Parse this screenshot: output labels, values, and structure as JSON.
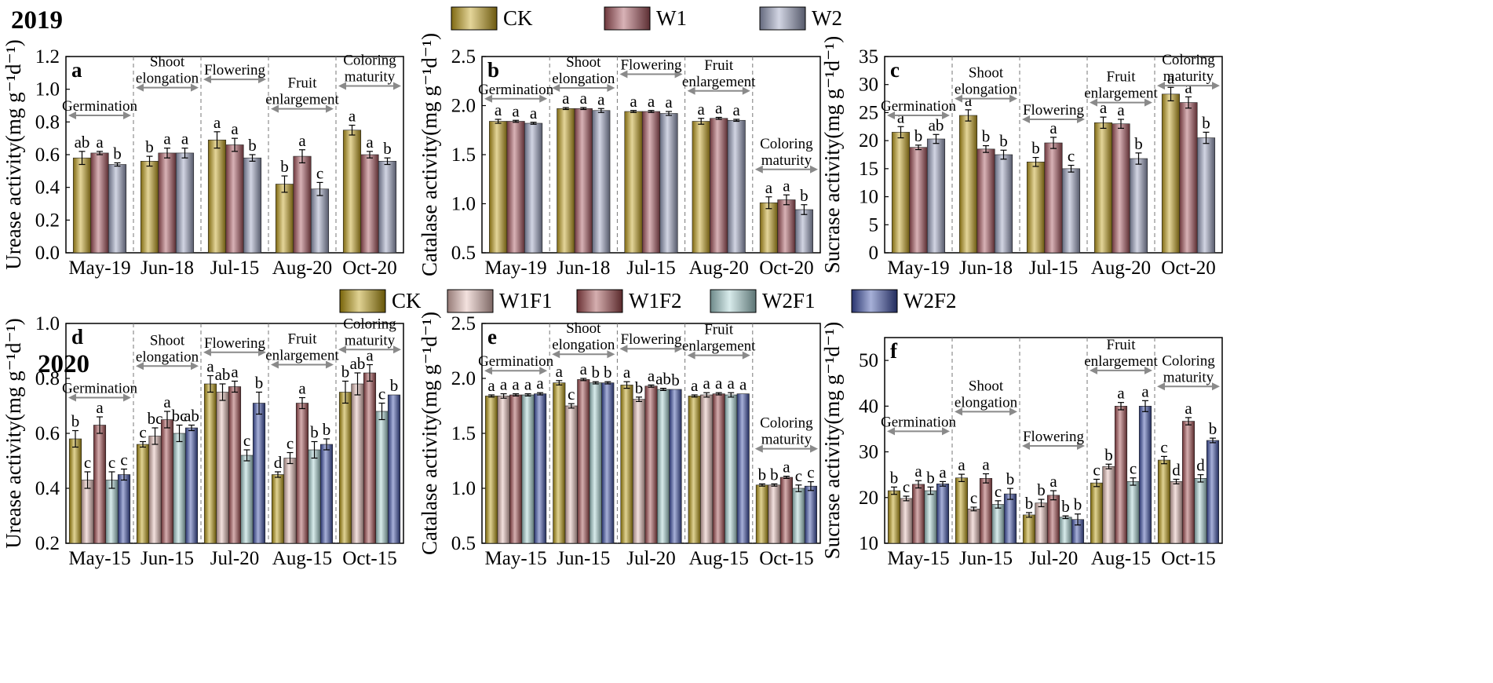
{
  "colors": {
    "CK": "#c4a21c",
    "W1": "#a8545c",
    "W2": "#9aa2c0",
    "W1F1": "#e4bcb6",
    "W1F2": "#a14a4e",
    "W2F1": "#a8d2d2",
    "W2F2": "#3c4fa8",
    "CK2": "#b99a0e"
  },
  "years": {
    "y2019": "2019",
    "y2020": "2020"
  },
  "legend2019": [
    {
      "name": "CK",
      "colorKey": "CK"
    },
    {
      "name": "W1",
      "colorKey": "W1"
    },
    {
      "name": "W2",
      "colorKey": "W2"
    }
  ],
  "legend2020": [
    {
      "name": "CK",
      "colorKey": "CK2"
    },
    {
      "name": "W1F1",
      "colorKey": "W1F1"
    },
    {
      "name": "W1F2",
      "colorKey": "W1F2"
    },
    {
      "name": "W2F1",
      "colorKey": "W2F1"
    },
    {
      "name": "W2F2",
      "colorKey": "W2F2"
    }
  ],
  "chart_data": [
    {
      "panel": "a",
      "type": "bar",
      "year": "2019",
      "ylabel": "Urease activity(mg g⁻¹d⁻¹)",
      "ylim": [
        0,
        1.2
      ],
      "yticks": [
        "0.0",
        "0.2",
        "0.4",
        "0.6",
        "0.8",
        "1.0",
        "1.2"
      ],
      "categories": [
        "May-19",
        "Jun-18",
        "Jul-15",
        "Aug-20",
        "Oct-20"
      ],
      "series": [
        {
          "name": "CK",
          "values": [
            0.58,
            0.56,
            0.69,
            0.42,
            0.75
          ],
          "errors": [
            0.04,
            0.03,
            0.05,
            0.05,
            0.03
          ],
          "letters": [
            "ab",
            "b",
            "a",
            "b",
            "a"
          ]
        },
        {
          "name": "W1",
          "values": [
            0.61,
            0.61,
            0.66,
            0.59,
            0.6
          ],
          "errors": [
            0.01,
            0.03,
            0.04,
            0.04,
            0.02
          ],
          "letters": [
            "a",
            "a",
            "a",
            "a",
            "a"
          ]
        },
        {
          "name": "W2",
          "values": [
            0.54,
            0.61,
            0.58,
            0.39,
            0.56
          ],
          "errors": [
            0.01,
            0.03,
            0.02,
            0.04,
            0.02
          ],
          "letters": [
            "b",
            "a",
            "b",
            "c",
            "b"
          ]
        }
      ],
      "stages": [
        {
          "lines": [
            "Germination"
          ],
          "level": 0.84
        },
        {
          "lines": [
            "Shoot",
            "elongation"
          ],
          "level": 1.01
        },
        {
          "lines": [
            "Flowering"
          ],
          "level": 1.06
        },
        {
          "lines": [
            "Fruit",
            "enlargement"
          ],
          "level": 0.88
        },
        {
          "lines": [
            "Coloring",
            "maturity"
          ],
          "level": 1.02
        }
      ]
    },
    {
      "panel": "b",
      "type": "bar",
      "year": "2019",
      "ylabel": "Catalase activity(mg g⁻¹d⁻¹)",
      "ylim": [
        0.5,
        2.5
      ],
      "yticks": [
        "0.5",
        "1.0",
        "1.5",
        "2.0",
        "2.5"
      ],
      "categories": [
        "May-19",
        "Jun-18",
        "Jul-15",
        "Aug-20",
        "Oct-20"
      ],
      "series": [
        {
          "name": "CK",
          "values": [
            1.84,
            1.97,
            1.94,
            1.84,
            1.01
          ],
          "errors": [
            0.02,
            0.01,
            0.01,
            0.03,
            0.06
          ],
          "letters": [
            "a",
            "a",
            "a",
            "a",
            "a"
          ]
        },
        {
          "name": "W1",
          "values": [
            1.84,
            1.97,
            1.94,
            1.87,
            1.04
          ],
          "errors": [
            0.01,
            0.01,
            0.01,
            0.01,
            0.05
          ],
          "letters": [
            "a",
            "a",
            "a",
            "a",
            "a"
          ]
        },
        {
          "name": "W2",
          "values": [
            1.82,
            1.95,
            1.92,
            1.85,
            0.94
          ],
          "errors": [
            0.01,
            0.02,
            0.02,
            0.01,
            0.05
          ],
          "letters": [
            "a",
            "a",
            "a",
            "a",
            "b"
          ]
        }
      ],
      "stages": [
        {
          "lines": [
            "Germination"
          ],
          "level": 2.07
        },
        {
          "lines": [
            "Shoot",
            "elongation"
          ],
          "level": 2.18
        },
        {
          "lines": [
            "Flowering"
          ],
          "level": 2.32
        },
        {
          "lines": [
            "Fruit",
            "enlargement"
          ],
          "level": 2.15
        },
        {
          "lines": [
            "Coloring",
            "maturity"
          ],
          "level": 1.35
        }
      ]
    },
    {
      "panel": "c",
      "type": "bar",
      "year": "2019",
      "ylabel": "Sucrase activity(mg g⁻¹d⁻¹)",
      "ylim": [
        0,
        35
      ],
      "yticks": [
        "0",
        "5",
        "10",
        "15",
        "20",
        "25",
        "30",
        "35"
      ],
      "categories": [
        "May-19",
        "Jun-18",
        "Jul-15",
        "Aug-20",
        "Oct-20"
      ],
      "series": [
        {
          "name": "CK",
          "values": [
            21.5,
            24.5,
            16.2,
            23.2,
            28.3
          ],
          "errors": [
            1.0,
            1.0,
            0.8,
            1.0,
            1.2
          ],
          "letters": [
            "a",
            "a",
            "b",
            "a",
            "a"
          ]
        },
        {
          "name": "W1",
          "values": [
            18.8,
            18.5,
            19.6,
            23.0,
            26.8
          ],
          "errors": [
            0.4,
            0.6,
            1.0,
            0.8,
            1.0
          ],
          "letters": [
            "b",
            "b",
            "a",
            "a",
            "a"
          ]
        },
        {
          "name": "W2",
          "values": [
            20.3,
            17.5,
            15.0,
            16.8,
            20.5
          ],
          "errors": [
            0.8,
            0.8,
            0.6,
            1.0,
            1.0
          ],
          "letters": [
            "ab",
            "b",
            "c",
            "b",
            "b"
          ]
        }
      ],
      "stages": [
        {
          "lines": [
            "Germination"
          ],
          "level": 24.5
        },
        {
          "lines": [
            "Shoot",
            "elongation"
          ],
          "level": 27.5
        },
        {
          "lines": [
            "Flowering"
          ],
          "level": 23.8
        },
        {
          "lines": [
            "Fruit",
            "enlargement"
          ],
          "level": 26.8
        },
        {
          "lines": [
            "Coloring",
            "maturity"
          ],
          "level": 29.8
        }
      ]
    },
    {
      "panel": "d",
      "type": "bar",
      "year": "2020",
      "ylabel": "Urease activity(mg g⁻¹d⁻¹)",
      "ylim": [
        0.2,
        1.0
      ],
      "yticks": [
        "0.2",
        "0.4",
        "0.6",
        "0.8",
        "1.0"
      ],
      "categories": [
        "May-15",
        "Jun-15",
        "Jul-20",
        "Aug-15",
        "Oct-15"
      ],
      "series": [
        {
          "name": "CK",
          "values": [
            0.58,
            0.56,
            0.78,
            0.45,
            0.75
          ],
          "errors": [
            0.03,
            0.01,
            0.03,
            0.01,
            0.04
          ],
          "letters": [
            "b",
            "c",
            "a",
            "d",
            "b"
          ]
        },
        {
          "name": "W1F1",
          "values": [
            0.43,
            0.59,
            0.75,
            0.51,
            0.78
          ],
          "errors": [
            0.03,
            0.03,
            0.03,
            0.02,
            0.04
          ],
          "letters": [
            "c",
            "bc",
            "ab",
            "c",
            "ab"
          ]
        },
        {
          "name": "W1F2",
          "values": [
            0.63,
            0.65,
            0.77,
            0.71,
            0.82
          ],
          "errors": [
            0.03,
            0.03,
            0.02,
            0.02,
            0.03
          ],
          "letters": [
            "a",
            "a",
            "a",
            "a",
            "a"
          ]
        },
        {
          "name": "W2F1",
          "values": [
            0.43,
            0.6,
            0.52,
            0.54,
            0.68
          ],
          "errors": [
            0.03,
            0.03,
            0.02,
            0.03,
            0.03
          ],
          "letters": [
            "c",
            "bc",
            "c",
            "b",
            "c"
          ]
        },
        {
          "name": "W2F2",
          "values": [
            0.45,
            0.62,
            0.71,
            0.56,
            0.74
          ],
          "errors": [
            0.02,
            0.01,
            0.04,
            0.02,
            0.0
          ],
          "letters": [
            "c",
            "ab",
            "b",
            "b",
            "b"
          ]
        }
      ],
      "stages": [
        {
          "lines": [
            "Germination"
          ],
          "level": 0.73
        },
        {
          "lines": [
            "Shoot",
            "elongation"
          ],
          "level": 0.845
        },
        {
          "lines": [
            "Flowering"
          ],
          "level": 0.895
        },
        {
          "lines": [
            "Fruit",
            "enlargement"
          ],
          "level": 0.85
        },
        {
          "lines": [
            "Coloring",
            "maturity"
          ],
          "level": 0.905
        }
      ]
    },
    {
      "panel": "e",
      "type": "bar",
      "year": "2020",
      "ylabel": "Catalase activity(mg g⁻¹d⁻¹)",
      "ylim": [
        0.5,
        2.5
      ],
      "yticks": [
        "0.5",
        "1.0",
        "1.5",
        "2.0",
        "2.5"
      ],
      "categories": [
        "May-15",
        "Jun-15",
        "Jul-20",
        "Aug-15",
        "Oct-15"
      ],
      "series": [
        {
          "name": "CK",
          "values": [
            1.84,
            1.96,
            1.94,
            1.84,
            1.03
          ],
          "errors": [
            0.01,
            0.02,
            0.03,
            0.01,
            0.01
          ],
          "letters": [
            "a",
            "a",
            "a",
            "a",
            "b"
          ]
        },
        {
          "name": "W1F1",
          "values": [
            1.84,
            1.75,
            1.81,
            1.85,
            1.03
          ],
          "errors": [
            0.02,
            0.02,
            0.02,
            0.02,
            0.01
          ],
          "letters": [
            "a",
            "c",
            "b",
            "a",
            "b"
          ]
        },
        {
          "name": "W1F2",
          "values": [
            1.85,
            1.99,
            1.93,
            1.86,
            1.1
          ],
          "errors": [
            0.01,
            0.01,
            0.01,
            0.01,
            0.01
          ],
          "letters": [
            "a",
            "a",
            "a",
            "a",
            "a"
          ]
        },
        {
          "name": "W2F1",
          "values": [
            1.85,
            1.96,
            1.9,
            1.85,
            1.0
          ],
          "errors": [
            0.01,
            0.01,
            0.01,
            0.02,
            0.03
          ],
          "letters": [
            "a",
            "b",
            "ab",
            "a",
            "c"
          ]
        },
        {
          "name": "W2F2",
          "values": [
            1.86,
            1.96,
            1.9,
            1.86,
            1.02
          ],
          "errors": [
            0.01,
            0.01,
            0.0,
            0.0,
            0.04
          ],
          "letters": [
            "a",
            "b",
            "b",
            "a",
            "c"
          ]
        }
      ],
      "stages": [
        {
          "lines": [
            "Germination"
          ],
          "level": 2.07
        },
        {
          "lines": [
            "Shoot",
            "elongation"
          ],
          "level": 2.22
        },
        {
          "lines": [
            "Flowering"
          ],
          "level": 2.27
        },
        {
          "lines": [
            "Fruit",
            "enlargement"
          ],
          "level": 2.21
        },
        {
          "lines": [
            "Coloring",
            "maturity"
          ],
          "level": 1.36
        }
      ]
    },
    {
      "panel": "f",
      "type": "bar",
      "year": "2020",
      "ylabel": "Sucrase activity(mg g⁻¹d⁻¹)",
      "ylim": [
        10,
        55
      ],
      "yticks": [
        "10",
        "20",
        "30",
        "40",
        "50"
      ],
      "categories": [
        "May-15",
        "Jun-15",
        "Jul-20",
        "Aug-15",
        "Oct-15"
      ],
      "series": [
        {
          "name": "CK",
          "values": [
            21.5,
            24.3,
            16.2,
            23.2,
            28.2
          ],
          "errors": [
            0.8,
            0.8,
            0.5,
            0.8,
            0.8
          ],
          "letters": [
            "b",
            "a",
            "b",
            "c",
            "c"
          ]
        },
        {
          "name": "W1F1",
          "values": [
            19.8,
            17.5,
            18.8,
            26.8,
            23.5
          ],
          "errors": [
            0.5,
            0.4,
            0.8,
            0.5,
            0.5
          ],
          "letters": [
            "c",
            "c",
            "b",
            "b",
            "d"
          ]
        },
        {
          "name": "W1F2",
          "values": [
            22.9,
            24.2,
            20.5,
            40.0,
            36.7
          ],
          "errors": [
            0.8,
            1.0,
            1.0,
            0.8,
            0.8
          ],
          "letters": [
            "a",
            "a",
            "a",
            "a",
            "a"
          ]
        },
        {
          "name": "W2F1",
          "values": [
            21.5,
            18.5,
            15.7,
            23.5,
            24.2
          ],
          "errors": [
            0.8,
            0.8,
            0.3,
            0.8,
            0.8
          ],
          "letters": [
            "b",
            "c",
            "b",
            "c",
            "d"
          ]
        },
        {
          "name": "W2F2",
          "values": [
            23.0,
            20.8,
            15.2,
            40.0,
            32.5
          ],
          "errors": [
            0.5,
            1.2,
            1.2,
            1.2,
            0.5
          ],
          "letters": [
            "a",
            "b",
            "b",
            "a",
            "b"
          ]
        }
      ],
      "stages": [
        {
          "lines": [
            "Germination"
          ],
          "level": 34.5
        },
        {
          "lines": [
            "Shoot",
            "elongation"
          ],
          "level": 38.8
        },
        {
          "lines": [
            "Flowering"
          ],
          "level": 31.3
        },
        {
          "lines": [
            "Fruit",
            "enlargement"
          ],
          "level": 47.8
        },
        {
          "lines": [
            "Coloring",
            "maturity"
          ],
          "level": 44.3
        }
      ]
    }
  ]
}
